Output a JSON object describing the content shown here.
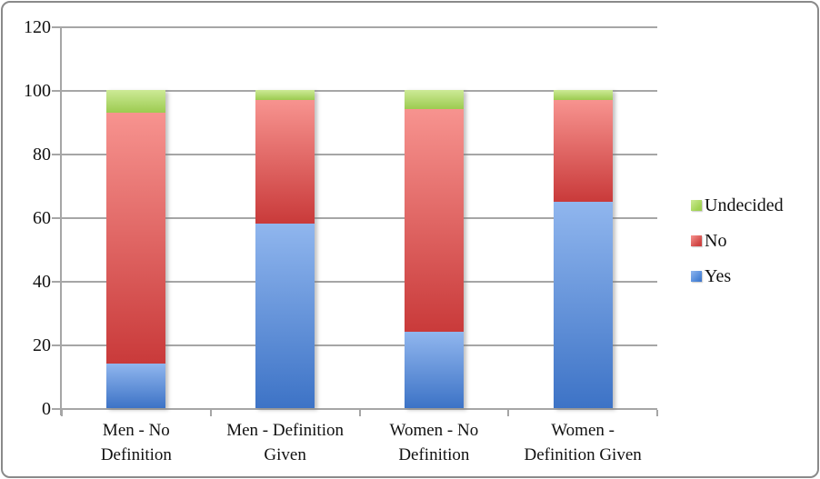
{
  "chart_data": {
    "type": "bar",
    "stacked": true,
    "title": "",
    "xlabel": "",
    "ylabel": "",
    "categories": [
      "Men - No Definition",
      "Men - Definition Given",
      "Women - No Definition",
      "Women - Definition Given"
    ],
    "category_lines": [
      [
        "Men - No",
        "Definition"
      ],
      [
        "Men - Definition",
        "Given"
      ],
      [
        "Women - No",
        "Definition"
      ],
      [
        "Women -",
        "Definition Given"
      ]
    ],
    "series": [
      {
        "name": "Yes",
        "values": [
          14,
          58,
          24,
          65
        ],
        "color_top": "#90b6ee",
        "color_bottom": "#3d73c6",
        "legend_color": "#4d86d8"
      },
      {
        "name": "No",
        "values": [
          79,
          39,
          70,
          32
        ],
        "color_top": "#f7938f",
        "color_bottom": "#c93a3a",
        "legend_color": "#d24a48"
      },
      {
        "name": "Undecided",
        "values": [
          7,
          3,
          6,
          3
        ],
        "color_top": "#cdea96",
        "color_bottom": "#9ccb50",
        "legend_color": "#a3d455"
      }
    ],
    "ylim": [
      0,
      120
    ],
    "yticks": [
      0,
      20,
      40,
      60,
      80,
      100,
      120
    ],
    "grid": true,
    "legend_position": "right",
    "legend_order_top_to_bottom": [
      "Undecided",
      "No",
      "Yes"
    ]
  },
  "colors": {
    "gridline": "#a6a6a6",
    "axis": "#a6a6a6",
    "border": "#8a8a8a",
    "background": "#ffffff",
    "text": "#111111"
  }
}
